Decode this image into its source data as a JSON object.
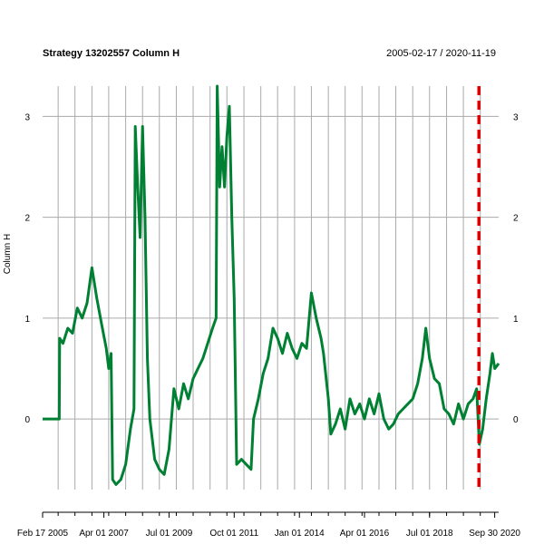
{
  "chart_data": {
    "type": "line",
    "title": "Strategy 13202557 Column H",
    "date_range": "2005-02-17 / 2020-11-19",
    "ylabel": "Column H",
    "xlabel": "",
    "ylim": [
      -0.7,
      3.3
    ],
    "yticks": [
      0,
      1,
      2,
      3
    ],
    "x_range": [
      "2005-02-17",
      "2020-11-19"
    ],
    "x_tick_labels": [
      {
        "date": "2005-02-17",
        "label": "Feb 17 2005"
      },
      {
        "date": "2007-04-01",
        "label": "Apr 01 2007"
      },
      {
        "date": "2009-07-01",
        "label": "Jul 01 2009"
      },
      {
        "date": "2011-10-01",
        "label": "Oct 01 2011"
      },
      {
        "date": "2014-01-01",
        "label": "Jan 01 2014"
      },
      {
        "date": "2016-04-01",
        "label": "Apr 01 2016"
      },
      {
        "date": "2018-07-01",
        "label": "Jul 01 2018"
      },
      {
        "date": "2020-09-30",
        "label": "Sep 30 2020"
      }
    ],
    "gridlines_x": [
      "2005-09-01",
      "2006-04-01",
      "2006-11-01",
      "2007-06-01",
      "2008-01-01",
      "2008-08-01",
      "2009-03-01",
      "2009-10-01",
      "2010-05-01",
      "2010-12-01",
      "2011-07-01",
      "2012-02-01",
      "2012-09-01",
      "2013-04-01",
      "2013-11-01",
      "2014-06-01",
      "2015-01-01",
      "2015-08-01",
      "2016-03-01",
      "2016-10-01",
      "2017-05-01",
      "2017-12-01",
      "2018-07-01",
      "2019-02-01",
      "2019-09-01",
      "2020-04-01"
    ],
    "grid": true,
    "vline": {
      "date": "2020-03-15",
      "color": "#dd0000",
      "style": "dashed"
    },
    "series": [
      {
        "color": "#008033",
        "points": [
          [
            "2005-02-17",
            0.0
          ],
          [
            "2005-06-01",
            0.0
          ],
          [
            "2005-09-15",
            0.0
          ],
          [
            "2005-09-20",
            0.8
          ],
          [
            "2005-11-01",
            0.75
          ],
          [
            "2006-01-01",
            0.9
          ],
          [
            "2006-03-01",
            0.85
          ],
          [
            "2006-05-01",
            1.1
          ],
          [
            "2006-07-01",
            1.0
          ],
          [
            "2006-09-01",
            1.15
          ],
          [
            "2006-11-01",
            1.5
          ],
          [
            "2007-01-01",
            1.2
          ],
          [
            "2007-03-01",
            0.95
          ],
          [
            "2007-05-01",
            0.7
          ],
          [
            "2007-06-01",
            0.5
          ],
          [
            "2007-07-01",
            0.65
          ],
          [
            "2007-07-20",
            -0.6
          ],
          [
            "2007-09-01",
            -0.65
          ],
          [
            "2007-11-01",
            -0.6
          ],
          [
            "2008-01-01",
            -0.45
          ],
          [
            "2008-03-01",
            -0.1
          ],
          [
            "2008-04-15",
            0.1
          ],
          [
            "2008-05-01",
            2.9
          ],
          [
            "2008-06-01",
            2.3
          ],
          [
            "2008-07-01",
            1.8
          ],
          [
            "2008-08-01",
            2.9
          ],
          [
            "2008-09-01",
            2.0
          ],
          [
            "2008-10-01",
            0.6
          ],
          [
            "2008-11-01",
            0.0
          ],
          [
            "2009-01-01",
            -0.4
          ],
          [
            "2009-03-01",
            -0.5
          ],
          [
            "2009-05-01",
            -0.55
          ],
          [
            "2009-07-01",
            -0.3
          ],
          [
            "2009-09-01",
            0.3
          ],
          [
            "2009-11-01",
            0.1
          ],
          [
            "2010-01-01",
            0.35
          ],
          [
            "2010-03-01",
            0.2
          ],
          [
            "2010-05-01",
            0.4
          ],
          [
            "2010-07-01",
            0.5
          ],
          [
            "2010-09-01",
            0.6
          ],
          [
            "2010-11-01",
            0.75
          ],
          [
            "2011-01-01",
            0.9
          ],
          [
            "2011-02-15",
            1.0
          ],
          [
            "2011-03-01",
            3.3
          ],
          [
            "2011-04-01",
            2.3
          ],
          [
            "2011-05-01",
            2.7
          ],
          [
            "2011-06-01",
            2.3
          ],
          [
            "2011-07-01",
            2.8
          ],
          [
            "2011-08-01",
            3.1
          ],
          [
            "2011-09-01",
            2.0
          ],
          [
            "2011-10-01",
            1.2
          ],
          [
            "2011-11-01",
            -0.45
          ],
          [
            "2012-01-01",
            -0.4
          ],
          [
            "2012-03-01",
            -0.45
          ],
          [
            "2012-05-01",
            -0.5
          ],
          [
            "2012-06-01",
            0.0
          ],
          [
            "2012-08-01",
            0.2
          ],
          [
            "2012-10-01",
            0.45
          ],
          [
            "2012-12-01",
            0.6
          ],
          [
            "2013-02-01",
            0.9
          ],
          [
            "2013-04-01",
            0.8
          ],
          [
            "2013-06-01",
            0.65
          ],
          [
            "2013-08-01",
            0.85
          ],
          [
            "2013-10-01",
            0.7
          ],
          [
            "2013-12-01",
            0.6
          ],
          [
            "2014-02-01",
            0.75
          ],
          [
            "2014-04-01",
            0.7
          ],
          [
            "2014-06-01",
            1.25
          ],
          [
            "2014-08-01",
            1.0
          ],
          [
            "2014-10-01",
            0.8
          ],
          [
            "2014-11-01",
            0.65
          ],
          [
            "2015-01-01",
            0.2
          ],
          [
            "2015-02-01",
            -0.15
          ],
          [
            "2015-04-01",
            -0.05
          ],
          [
            "2015-06-01",
            0.1
          ],
          [
            "2015-08-01",
            -0.1
          ],
          [
            "2015-10-01",
            0.2
          ],
          [
            "2015-12-01",
            0.05
          ],
          [
            "2016-02-01",
            0.15
          ],
          [
            "2016-04-01",
            0.0
          ],
          [
            "2016-06-01",
            0.2
          ],
          [
            "2016-08-01",
            0.05
          ],
          [
            "2016-10-01",
            0.25
          ],
          [
            "2016-12-01",
            0.0
          ],
          [
            "2017-02-01",
            -0.1
          ],
          [
            "2017-04-01",
            -0.05
          ],
          [
            "2017-06-01",
            0.05
          ],
          [
            "2017-08-01",
            0.1
          ],
          [
            "2017-10-01",
            0.15
          ],
          [
            "2017-12-01",
            0.2
          ],
          [
            "2018-02-01",
            0.35
          ],
          [
            "2018-04-01",
            0.6
          ],
          [
            "2018-05-15",
            0.9
          ],
          [
            "2018-07-01",
            0.6
          ],
          [
            "2018-09-01",
            0.4
          ],
          [
            "2018-11-01",
            0.35
          ],
          [
            "2019-01-01",
            0.1
          ],
          [
            "2019-03-01",
            0.05
          ],
          [
            "2019-05-01",
            -0.05
          ],
          [
            "2019-07-01",
            0.15
          ],
          [
            "2019-09-01",
            0.0
          ],
          [
            "2019-11-01",
            0.15
          ],
          [
            "2020-01-01",
            0.2
          ],
          [
            "2020-02-15",
            0.3
          ],
          [
            "2020-03-20",
            -0.25
          ],
          [
            "2020-05-01",
            -0.1
          ],
          [
            "2020-06-15",
            0.2
          ],
          [
            "2020-08-01",
            0.45
          ],
          [
            "2020-09-01",
            0.65
          ],
          [
            "2020-10-01",
            0.5
          ],
          [
            "2020-11-19",
            0.55
          ]
        ]
      }
    ]
  }
}
